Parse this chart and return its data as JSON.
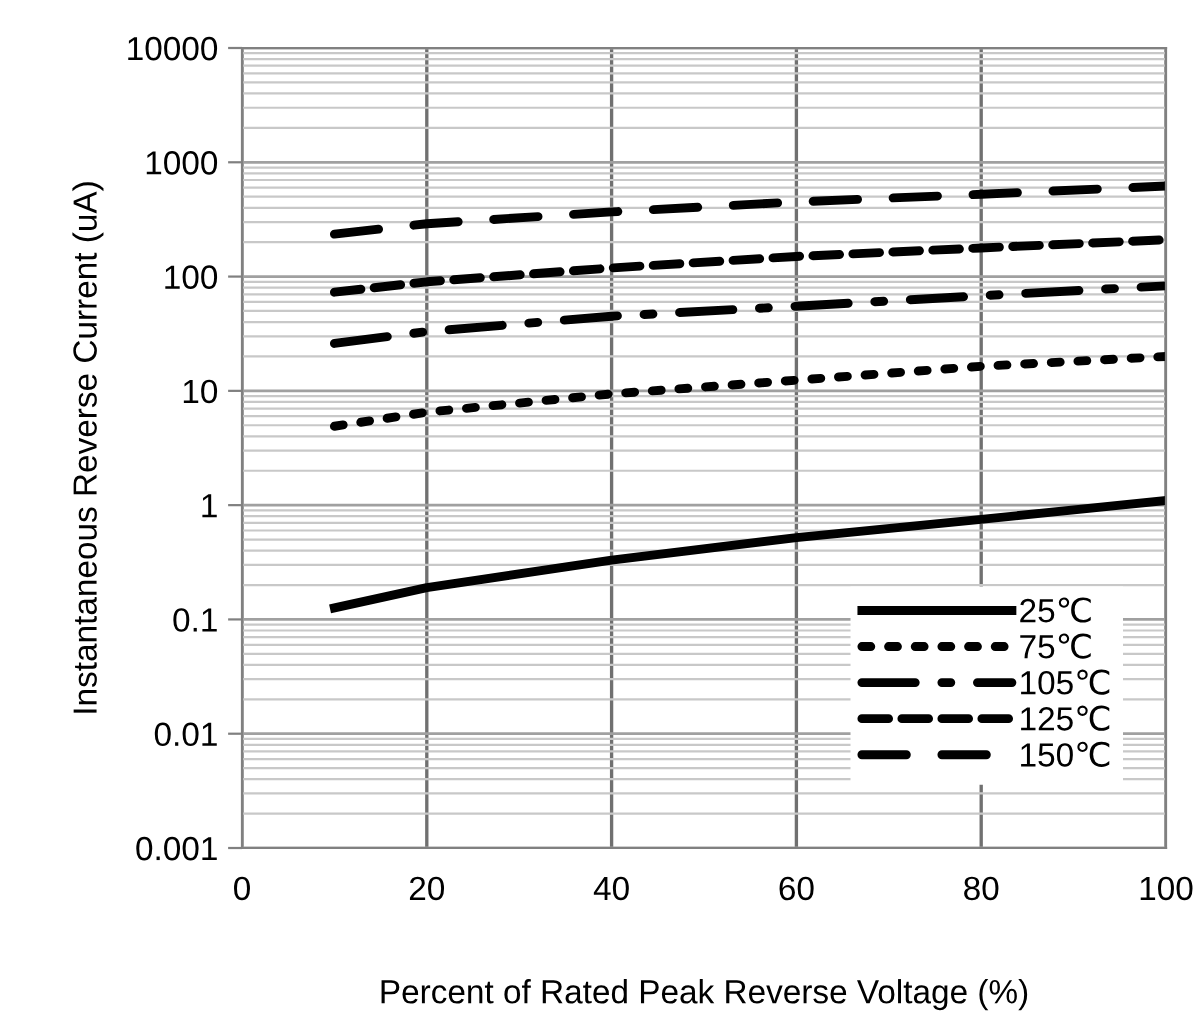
{
  "chart_data": {
    "type": "line",
    "xlabel": "Percent of Rated Peak Reverse Voltage (%)",
    "ylabel": "Instantaneous Reverse Current (uA)",
    "x": [
      10,
      20,
      40,
      60,
      80,
      100
    ],
    "series": [
      {
        "name": "25℃",
        "color": "#000000",
        "line_style": "solid",
        "values": [
          0.126,
          0.19,
          0.33,
          0.52,
          0.75,
          1.1
        ]
      },
      {
        "name": "75℃",
        "color": "#000000",
        "line_style": "dotted",
        "values": [
          4.9,
          6.5,
          9.4,
          12.4,
          16.4,
          20
        ]
      },
      {
        "name": "105℃",
        "color": "#000000",
        "line_style": "dashdot",
        "values": [
          26,
          33,
          45,
          55,
          68,
          83
        ]
      },
      {
        "name": "125℃",
        "color": "#000000",
        "line_style": "dashed",
        "values": [
          73,
          90,
          119,
          150,
          178,
          210
        ]
      },
      {
        "name": "150℃",
        "color": "#000000",
        "line_style": "longdash",
        "values": [
          235,
          290,
          368,
          450,
          525,
          620
        ]
      }
    ],
    "log": "y",
    "xlim": [
      0,
      100
    ],
    "xticks": [
      0,
      20,
      40,
      60,
      80,
      100
    ],
    "ylim": [
      0.001,
      10000
    ],
    "yticks": [
      {
        "value": 0.001,
        "label": "0.001"
      },
      {
        "value": 0.01,
        "label": "0.01"
      },
      {
        "value": 0.1,
        "label": "0.1"
      },
      {
        "value": 1,
        "label": "1"
      },
      {
        "value": 10,
        "label": "10"
      },
      {
        "value": 100,
        "label": "100"
      },
      {
        "value": 1000,
        "label": "1000"
      },
      {
        "value": 10000,
        "label": "10000"
      }
    ],
    "grid": true,
    "legend": "bottom right",
    "marker": "none"
  }
}
